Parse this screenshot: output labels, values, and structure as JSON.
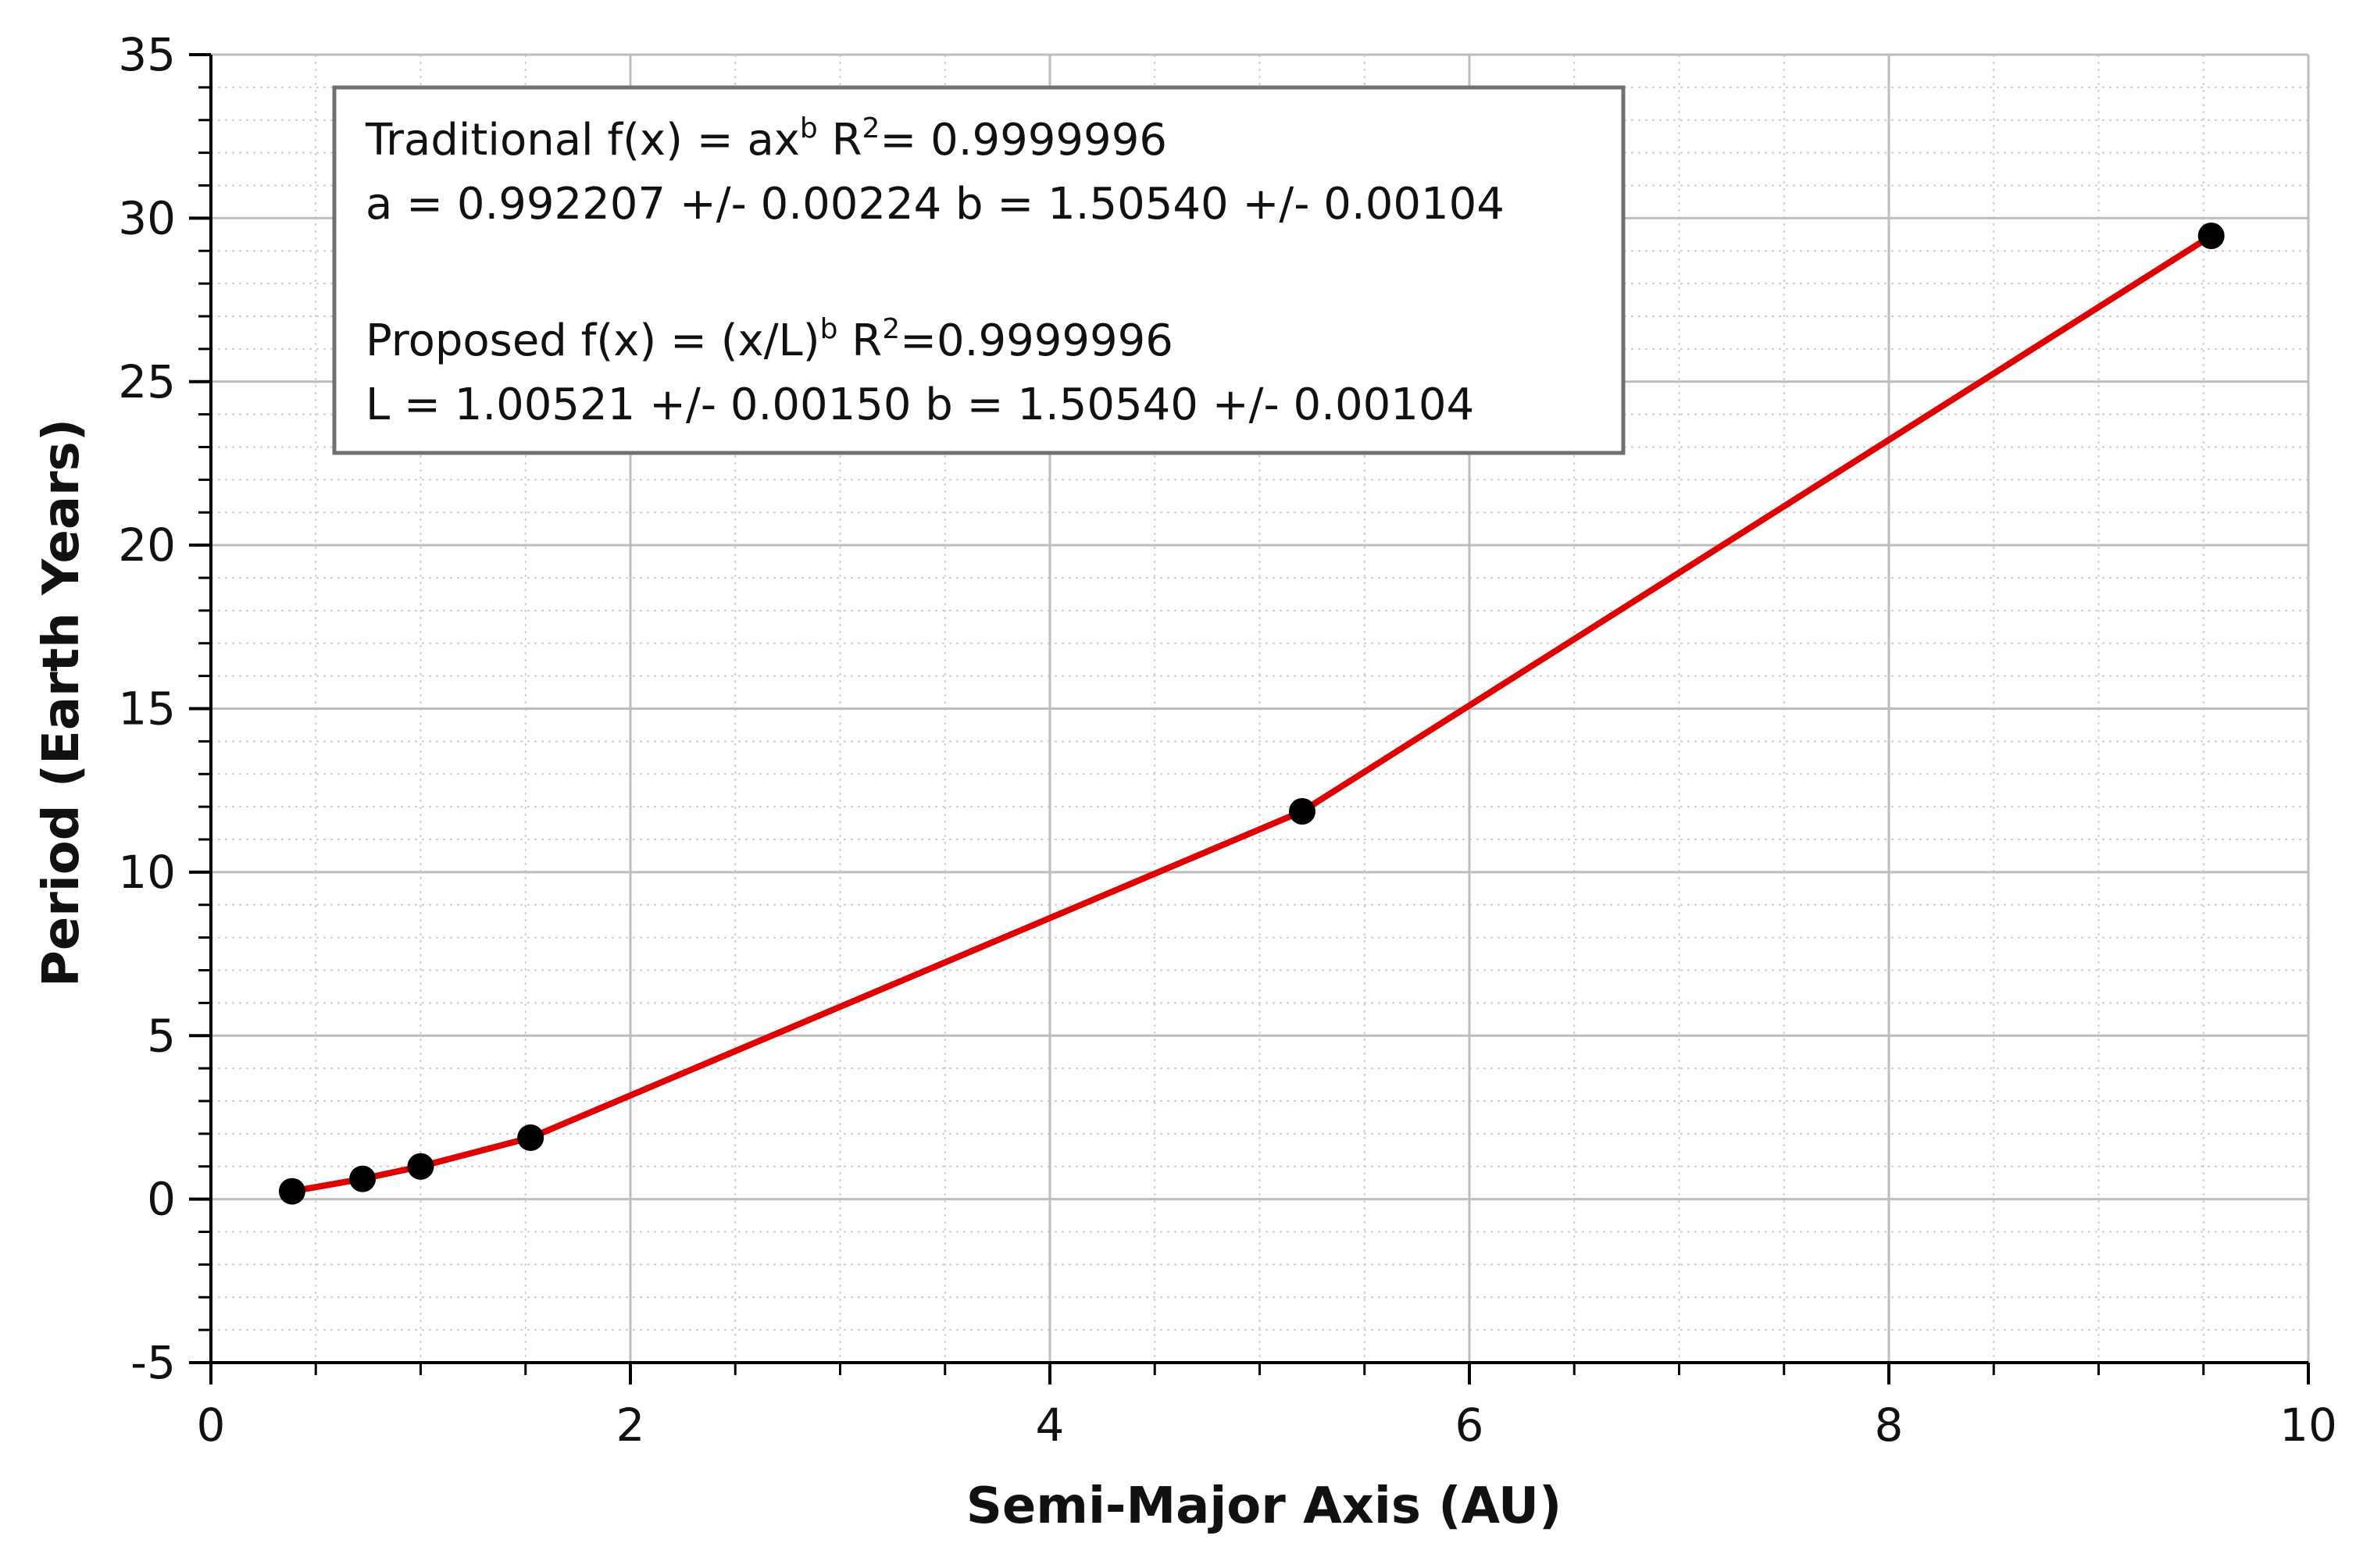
{
  "chart_data": {
    "type": "scatter",
    "xlabel": "Semi-Major Axis (AU)",
    "ylabel": "Period (Earth Years)",
    "xlim": [
      0,
      10
    ],
    "ylim": [
      -5,
      35
    ],
    "x_ticks": [
      0,
      2,
      4,
      6,
      8,
      10
    ],
    "y_ticks": [
      -5,
      0,
      5,
      10,
      15,
      20,
      25,
      30,
      35
    ],
    "grid": true,
    "series": [
      {
        "mode": "markers",
        "color": "#000000",
        "x": [
          0.387,
          0.723,
          1.0,
          1.524,
          5.203,
          9.537
        ],
        "y": [
          0.24,
          0.62,
          1.0,
          1.88,
          11.86,
          29.46
        ]
      },
      {
        "mode": "line",
        "color": "#e00000",
        "x": [
          0.387,
          0.723,
          1.0,
          1.524,
          5.203,
          9.537
        ],
        "y": [
          0.24,
          0.62,
          1.0,
          1.88,
          11.86,
          29.46
        ]
      },
      {
        "mode": "line",
        "color": "#000000",
        "x": [
          0.387,
          0.723,
          1.0,
          1.524,
          5.203,
          9.537
        ],
        "y": [
          0.24,
          0.62,
          1.0,
          1.88,
          11.86,
          29.46
        ]
      }
    ],
    "annotation": {
      "trad_prefix": "Traditional f(x) = ax",
      "trad_sup": "b",
      "trad_r_prefix": " R",
      "trad_r_sup": "2",
      "trad_r_val": "= 0.9999996",
      "trad_params": "a = 0.992207 +/- 0.00224 b = 1.50540 +/- 0.00104",
      "prop_prefix": "Proposed f(x) = (x/L)",
      "prop_sup": "b",
      "prop_r_prefix": " R",
      "prop_r_sup": "2",
      "prop_r_val": "=0.9999996",
      "prop_params": "L = 1.00521 +/- 0.00150 b = 1.50540 +/- 0.00104"
    },
    "colors": {
      "grid_major": "#bdbdbd",
      "grid_minor": "#cfcfcf",
      "axis": "#000000",
      "annotation_border": "#707070"
    }
  }
}
